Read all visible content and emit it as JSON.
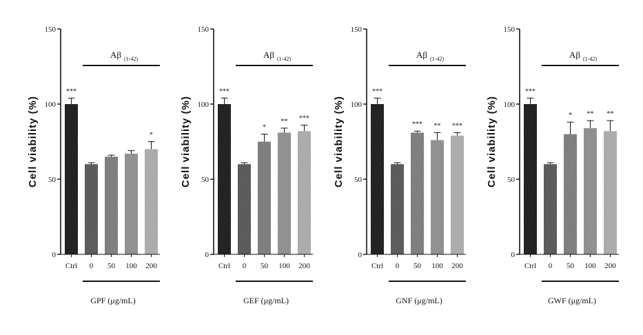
{
  "figure": {
    "y_axis_title": "Cell viability (%)",
    "treatment_label": "Aβ",
    "treatment_subscript": "(1-42)"
  },
  "chart_data": [
    {
      "type": "bar",
      "categories": [
        "Ctrl",
        "0",
        "50",
        "100",
        "200"
      ],
      "values": [
        100,
        60,
        65,
        67,
        70
      ],
      "errors": [
        4,
        1,
        1,
        2,
        5
      ],
      "significance": [
        "***",
        "",
        "",
        "",
        "*"
      ],
      "xlabel": "GPF (μg/mL)",
      "ylabel": "Cell viability (%)",
      "yticks": [
        "0",
        "50",
        "100",
        "150"
      ],
      "ylim": [
        0,
        150
      ],
      "colors": [
        "#1a1a1a",
        "#555555",
        "#7a7a7a",
        "#8c8c8c",
        "#a8a8a8"
      ]
    },
    {
      "type": "bar",
      "categories": [
        "Ctrl",
        "0",
        "50",
        "100",
        "200"
      ],
      "values": [
        100,
        60,
        75,
        81,
        82
      ],
      "errors": [
        4,
        1,
        5,
        3,
        4
      ],
      "significance": [
        "***",
        "",
        "*",
        "**",
        "***"
      ],
      "xlabel": "GEF (μg/mL)",
      "ylabel": "Cell viability (%)",
      "yticks": [
        "0",
        "50",
        "100",
        "150"
      ],
      "ylim": [
        0,
        150
      ],
      "colors": [
        "#1a1a1a",
        "#555555",
        "#7a7a7a",
        "#8c8c8c",
        "#a8a8a8"
      ]
    },
    {
      "type": "bar",
      "categories": [
        "Ctrl",
        "0",
        "50",
        "100",
        "200"
      ],
      "values": [
        100,
        60,
        81,
        76,
        79
      ],
      "errors": [
        4,
        1,
        1,
        5,
        2
      ],
      "significance": [
        "***",
        "",
        "***",
        "**",
        "***"
      ],
      "xlabel": "GNF (μg/mL)",
      "ylabel": "Cell viability (%)",
      "yticks": [
        "0",
        "50",
        "100",
        "150"
      ],
      "ylim": [
        0,
        150
      ],
      "colors": [
        "#1a1a1a",
        "#555555",
        "#7a7a7a",
        "#8c8c8c",
        "#a8a8a8"
      ]
    },
    {
      "type": "bar",
      "categories": [
        "Ctrl",
        "0",
        "50",
        "100",
        "200"
      ],
      "values": [
        100,
        60,
        80,
        84,
        82
      ],
      "errors": [
        4,
        1,
        8,
        5,
        7
      ],
      "significance": [
        "***",
        "",
        "*",
        "**",
        "**"
      ],
      "xlabel": "GWF (μg/mL)",
      "ylabel": "Cell viability (%)",
      "yticks": [
        "0",
        "50",
        "100",
        "150"
      ],
      "ylim": [
        0,
        150
      ],
      "colors": [
        "#1a1a1a",
        "#555555",
        "#7a7a7a",
        "#8c8c8c",
        "#a8a8a8"
      ]
    }
  ]
}
